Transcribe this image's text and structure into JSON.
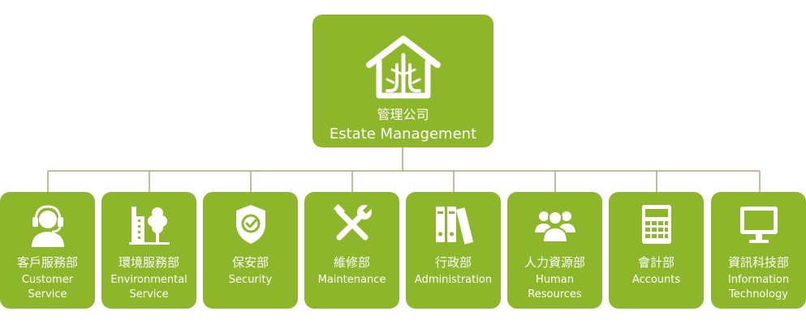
{
  "root": {
    "title_zh": "管理公司",
    "title_en": "Estate Management",
    "icon": "house-tree-icon"
  },
  "departments": [
    {
      "zh": "客戶服務部",
      "en": "Customer\nService",
      "icon": "headset-agent-icon"
    },
    {
      "zh": "環境服務部",
      "en": "Environmental\nService",
      "icon": "building-tree-icon"
    },
    {
      "zh": "保安部",
      "en": "Security",
      "icon": "shield-check-icon"
    },
    {
      "zh": "維修部",
      "en": "Maintenance",
      "icon": "tools-icon"
    },
    {
      "zh": "行政部",
      "en": "Administration",
      "icon": "binders-icon"
    },
    {
      "zh": "人力資源部",
      "en": "Human\nResources",
      "icon": "people-group-icon"
    },
    {
      "zh": "會計部",
      "en": "Accounts",
      "icon": "calculator-icon"
    },
    {
      "zh": "資訊科技部",
      "en": "Information\nTechnology",
      "icon": "computer-monitor-icon"
    }
  ],
  "colors": {
    "box": "#8db62b",
    "line": "#b3a27c",
    "text": "#ffffff"
  }
}
